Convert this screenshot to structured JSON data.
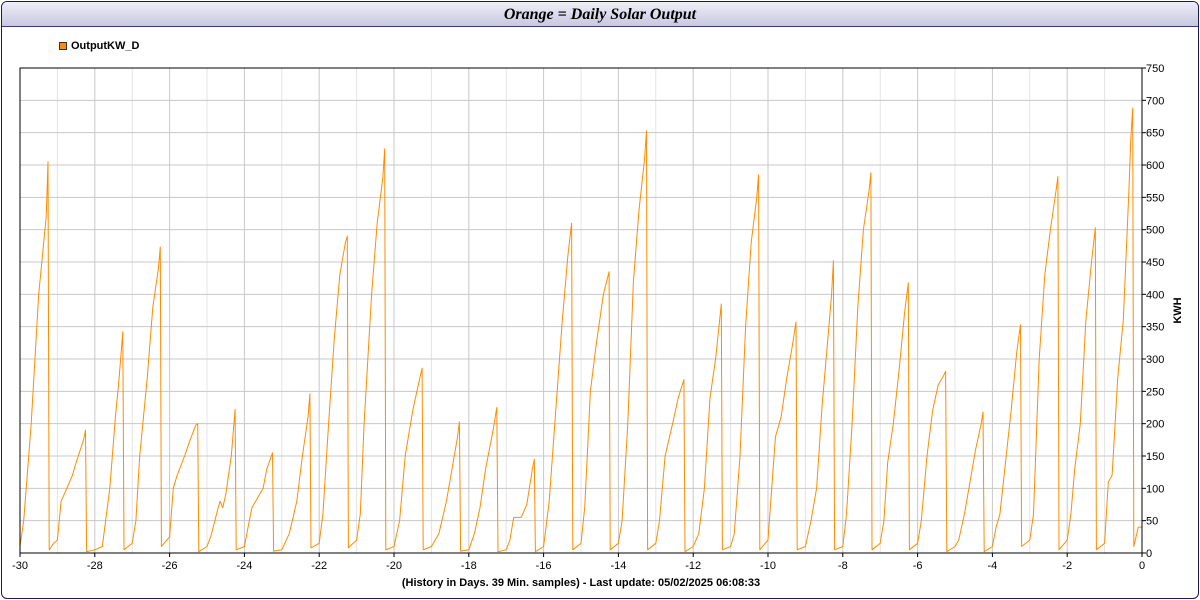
{
  "title": "Orange = Daily Solar Output",
  "footer": "(History in Days. 39 Min. samples) - Last update: 05/02/2025 06:08:33",
  "chart_data": {
    "type": "line",
    "title": "Orange = Daily Solar Output",
    "xlabel": "(History in Days. 39 Min. samples) - Last update: 05/02/2025 06:08:33",
    "ylabel": "KWH",
    "xlim": [
      -30,
      0
    ],
    "ylim": [
      0,
      750
    ],
    "x_ticks": [
      -30,
      -28,
      -26,
      -24,
      -22,
      -20,
      -18,
      -16,
      -14,
      -12,
      -10,
      -8,
      -6,
      -4,
      -2,
      0
    ],
    "y_ticks": [
      0,
      50,
      100,
      150,
      200,
      250,
      300,
      350,
      400,
      450,
      500,
      550,
      600,
      650,
      700,
      750
    ],
    "grid": true,
    "legend_position": "top-left",
    "series": [
      {
        "name": "OutputKW_D",
        "color": "#ff8c00",
        "points": [
          [
            -30.0,
            10
          ],
          [
            -29.9,
            50
          ],
          [
            -29.7,
            200
          ],
          [
            -29.5,
            400
          ],
          [
            -29.3,
            520
          ],
          [
            -29.25,
            605
          ],
          [
            -29.22,
            5
          ],
          [
            -29.1,
            15
          ],
          [
            -29.0,
            20
          ],
          [
            -28.9,
            80
          ],
          [
            -28.75,
            100
          ],
          [
            -28.6,
            120
          ],
          [
            -28.5,
            140
          ],
          [
            -28.3,
            175
          ],
          [
            -28.25,
            190
          ],
          [
            -28.22,
            2
          ],
          [
            -28.0,
            5
          ],
          [
            -27.8,
            10
          ],
          [
            -27.6,
            100
          ],
          [
            -27.45,
            210
          ],
          [
            -27.35,
            270
          ],
          [
            -27.25,
            342
          ],
          [
            -27.22,
            5
          ],
          [
            -27.0,
            15
          ],
          [
            -26.9,
            50
          ],
          [
            -26.8,
            150
          ],
          [
            -26.6,
            270
          ],
          [
            -26.45,
            380
          ],
          [
            -26.3,
            440
          ],
          [
            -26.25,
            473
          ],
          [
            -26.22,
            10
          ],
          [
            -26.0,
            25
          ],
          [
            -25.9,
            100
          ],
          [
            -25.8,
            120
          ],
          [
            -25.6,
            150
          ],
          [
            -25.45,
            175
          ],
          [
            -25.3,
            198
          ],
          [
            -25.25,
            200
          ],
          [
            -25.22,
            2
          ],
          [
            -25.0,
            10
          ],
          [
            -24.9,
            25
          ],
          [
            -24.7,
            70
          ],
          [
            -24.65,
            80
          ],
          [
            -24.58,
            70
          ],
          [
            -24.5,
            90
          ],
          [
            -24.35,
            150
          ],
          [
            -24.25,
            222
          ],
          [
            -24.22,
            5
          ],
          [
            -24.0,
            10
          ],
          [
            -23.9,
            40
          ],
          [
            -23.8,
            70
          ],
          [
            -23.6,
            90
          ],
          [
            -23.5,
            100
          ],
          [
            -23.4,
            130
          ],
          [
            -23.25,
            155
          ],
          [
            -23.22,
            3
          ],
          [
            -23.0,
            5
          ],
          [
            -22.8,
            30
          ],
          [
            -22.6,
            80
          ],
          [
            -22.45,
            150
          ],
          [
            -22.3,
            210
          ],
          [
            -22.25,
            246
          ],
          [
            -22.22,
            8
          ],
          [
            -22.0,
            15
          ],
          [
            -21.9,
            60
          ],
          [
            -21.75,
            200
          ],
          [
            -21.6,
            330
          ],
          [
            -21.45,
            430
          ],
          [
            -21.3,
            480
          ],
          [
            -21.25,
            490
          ],
          [
            -21.22,
            8
          ],
          [
            -21.0,
            20
          ],
          [
            -20.9,
            60
          ],
          [
            -20.8,
            200
          ],
          [
            -20.6,
            400
          ],
          [
            -20.45,
            510
          ],
          [
            -20.3,
            580
          ],
          [
            -20.25,
            625
          ],
          [
            -20.22,
            5
          ],
          [
            -20.0,
            10
          ],
          [
            -19.85,
            50
          ],
          [
            -19.7,
            150
          ],
          [
            -19.5,
            220
          ],
          [
            -19.35,
            260
          ],
          [
            -19.25,
            286
          ],
          [
            -19.22,
            5
          ],
          [
            -19.0,
            10
          ],
          [
            -18.8,
            30
          ],
          [
            -18.6,
            80
          ],
          [
            -18.45,
            130
          ],
          [
            -18.3,
            180
          ],
          [
            -18.25,
            203
          ],
          [
            -18.22,
            3
          ],
          [
            -18.0,
            5
          ],
          [
            -17.85,
            30
          ],
          [
            -17.7,
            70
          ],
          [
            -17.55,
            130
          ],
          [
            -17.35,
            190
          ],
          [
            -17.25,
            225
          ],
          [
            -17.22,
            2
          ],
          [
            -17.0,
            5
          ],
          [
            -16.9,
            20
          ],
          [
            -16.8,
            55
          ],
          [
            -16.6,
            55
          ],
          [
            -16.45,
            75
          ],
          [
            -16.3,
            130
          ],
          [
            -16.25,
            145
          ],
          [
            -16.22,
            2
          ],
          [
            -16.0,
            10
          ],
          [
            -15.85,
            80
          ],
          [
            -15.7,
            200
          ],
          [
            -15.5,
            360
          ],
          [
            -15.35,
            460
          ],
          [
            -15.25,
            510
          ],
          [
            -15.22,
            5
          ],
          [
            -15.0,
            15
          ],
          [
            -14.9,
            70
          ],
          [
            -14.75,
            250
          ],
          [
            -14.6,
            320
          ],
          [
            -14.4,
            400
          ],
          [
            -14.25,
            435
          ],
          [
            -14.22,
            5
          ],
          [
            -14.0,
            15
          ],
          [
            -13.9,
            50
          ],
          [
            -13.75,
            200
          ],
          [
            -13.6,
            420
          ],
          [
            -13.45,
            530
          ],
          [
            -13.3,
            610
          ],
          [
            -13.25,
            653
          ],
          [
            -13.22,
            5
          ],
          [
            -13.0,
            15
          ],
          [
            -12.9,
            50
          ],
          [
            -12.75,
            150
          ],
          [
            -12.55,
            200
          ],
          [
            -12.4,
            240
          ],
          [
            -12.25,
            268
          ],
          [
            -12.22,
            2
          ],
          [
            -12.0,
            10
          ],
          [
            -11.85,
            30
          ],
          [
            -11.7,
            100
          ],
          [
            -11.55,
            240
          ],
          [
            -11.4,
            300
          ],
          [
            -11.25,
            385
          ],
          [
            -11.22,
            5
          ],
          [
            -11.0,
            10
          ],
          [
            -10.9,
            30
          ],
          [
            -10.75,
            150
          ],
          [
            -10.6,
            350
          ],
          [
            -10.45,
            480
          ],
          [
            -10.3,
            550
          ],
          [
            -10.25,
            585
          ],
          [
            -10.22,
            5
          ],
          [
            -10.0,
            20
          ],
          [
            -9.9,
            100
          ],
          [
            -9.8,
            180
          ],
          [
            -9.65,
            210
          ],
          [
            -9.5,
            270
          ],
          [
            -9.35,
            320
          ],
          [
            -9.25,
            357
          ],
          [
            -9.22,
            5
          ],
          [
            -9.0,
            10
          ],
          [
            -8.85,
            50
          ],
          [
            -8.7,
            100
          ],
          [
            -8.55,
            230
          ],
          [
            -8.4,
            330
          ],
          [
            -8.3,
            400
          ],
          [
            -8.25,
            452
          ],
          [
            -8.22,
            5
          ],
          [
            -8.0,
            10
          ],
          [
            -7.9,
            60
          ],
          [
            -7.75,
            200
          ],
          [
            -7.6,
            380
          ],
          [
            -7.45,
            500
          ],
          [
            -7.3,
            560
          ],
          [
            -7.25,
            588
          ],
          [
            -7.22,
            5
          ],
          [
            -7.0,
            15
          ],
          [
            -6.9,
            50
          ],
          [
            -6.8,
            140
          ],
          [
            -6.65,
            200
          ],
          [
            -6.5,
            280
          ],
          [
            -6.35,
            370
          ],
          [
            -6.25,
            418
          ],
          [
            -6.22,
            5
          ],
          [
            -6.0,
            15
          ],
          [
            -5.9,
            50
          ],
          [
            -5.75,
            150
          ],
          [
            -5.6,
            220
          ],
          [
            -5.45,
            260
          ],
          [
            -5.3,
            275
          ],
          [
            -5.25,
            281
          ],
          [
            -5.22,
            2
          ],
          [
            -5.0,
            10
          ],
          [
            -4.9,
            20
          ],
          [
            -4.75,
            60
          ],
          [
            -4.6,
            110
          ],
          [
            -4.45,
            160
          ],
          [
            -4.3,
            200
          ],
          [
            -4.25,
            218
          ],
          [
            -4.22,
            2
          ],
          [
            -4.0,
            10
          ],
          [
            -3.9,
            40
          ],
          [
            -3.8,
            60
          ],
          [
            -3.65,
            140
          ],
          [
            -3.5,
            220
          ],
          [
            -3.35,
            310
          ],
          [
            -3.25,
            353
          ],
          [
            -3.22,
            10
          ],
          [
            -3.0,
            20
          ],
          [
            -2.9,
            60
          ],
          [
            -2.75,
            300
          ],
          [
            -2.6,
            430
          ],
          [
            -2.45,
            500
          ],
          [
            -2.3,
            560
          ],
          [
            -2.25,
            582
          ],
          [
            -2.22,
            5
          ],
          [
            -2.0,
            20
          ],
          [
            -1.9,
            60
          ],
          [
            -1.8,
            130
          ],
          [
            -1.65,
            200
          ],
          [
            -1.5,
            360
          ],
          [
            -1.35,
            450
          ],
          [
            -1.25,
            503
          ],
          [
            -1.22,
            5
          ],
          [
            -1.0,
            15
          ],
          [
            -0.9,
            110
          ],
          [
            -0.8,
            120
          ],
          [
            -0.65,
            270
          ],
          [
            -0.5,
            360
          ],
          [
            -0.35,
            560
          ],
          [
            -0.3,
            640
          ],
          [
            -0.25,
            688
          ],
          [
            -0.22,
            10
          ],
          [
            -0.1,
            40
          ],
          [
            0.0,
            40
          ]
        ]
      }
    ]
  }
}
